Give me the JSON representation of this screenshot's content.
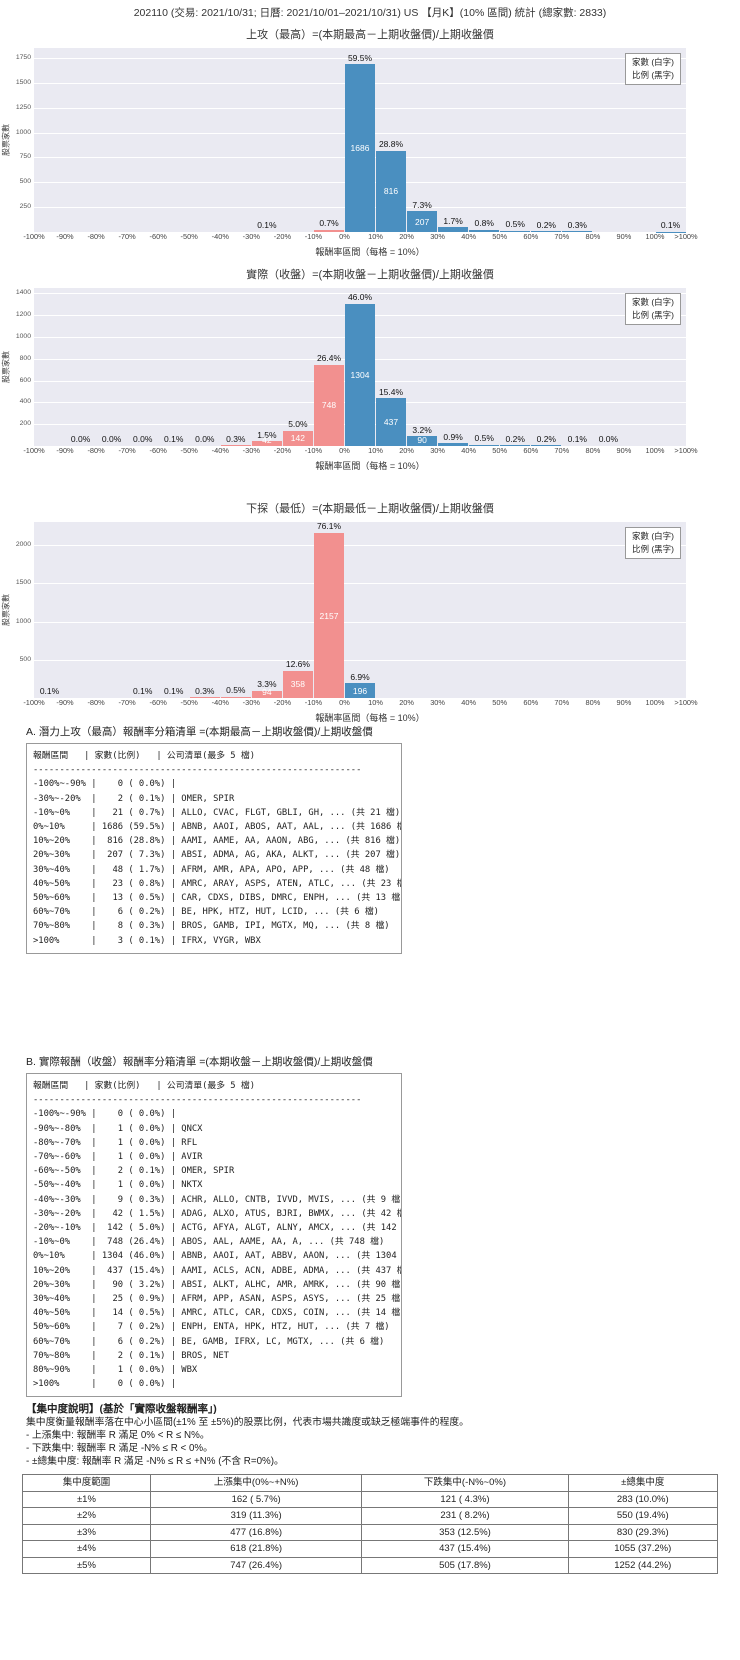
{
  "page_title": "202110 (交易: 2021/10/31; 日曆: 2021/10/01–2021/10/31) US 【月K】(10% 區間) 統計 (總家數: 2833)",
  "colors": {
    "bar_pos": "#4a8fc0",
    "bar_neg": "#f2908f",
    "plot_bg": "#eaeaf2",
    "grid": "#ffffff"
  },
  "chart_data": [
    {
      "type": "bar",
      "title": "上攻（最高）=(本期最高－上期收盤價)/上期收盤價",
      "ylabel": "股票家數",
      "xlabel": "報酬率區間（每格 = 10%）",
      "legend": [
        "家數 (白字)",
        "比例 (黑字)"
      ],
      "total": 2833,
      "ymax": 1850,
      "yticks": [
        250,
        500,
        750,
        1000,
        1250,
        1500,
        1750
      ],
      "xticks": [
        "-100%",
        "-90%",
        "-80%",
        "-70%",
        "-60%",
        "-50%",
        "-40%",
        "-30%",
        "-20%",
        "-10%",
        "0%",
        "10%",
        "20%",
        "30%",
        "40%",
        "50%",
        "60%",
        "70%",
        "80%",
        "90%",
        "100%",
        ">100%"
      ],
      "bins": [
        {
          "range": "-100%~-90%",
          "count": 0,
          "pct": 0.0,
          "pct_label": "",
          "count_label": ""
        },
        {
          "range": "-90%~-80%",
          "count": 0,
          "pct": 0.0,
          "pct_label": "",
          "count_label": ""
        },
        {
          "range": "-80%~-70%",
          "count": 0,
          "pct": 0.0,
          "pct_label": "",
          "count_label": ""
        },
        {
          "range": "-70%~-60%",
          "count": 0,
          "pct": 0.0,
          "pct_label": "",
          "count_label": ""
        },
        {
          "range": "-60%~-50%",
          "count": 0,
          "pct": 0.0,
          "pct_label": "",
          "count_label": ""
        },
        {
          "range": "-50%~-40%",
          "count": 0,
          "pct": 0.0,
          "pct_label": "",
          "count_label": ""
        },
        {
          "range": "-40%~-30%",
          "count": 0,
          "pct": 0.0,
          "pct_label": "",
          "count_label": ""
        },
        {
          "range": "-30%~-20%",
          "count": 2,
          "pct": 0.1,
          "pct_label": "0.1%",
          "count_label": ""
        },
        {
          "range": "-20%~-10%",
          "count": 0,
          "pct": 0.0,
          "pct_label": "",
          "count_label": ""
        },
        {
          "range": "-10%~0%",
          "count": 21,
          "pct": 0.7,
          "pct_label": "0.7%",
          "count_label": ""
        },
        {
          "range": "0%~10%",
          "count": 1686,
          "pct": 59.5,
          "pct_label": "59.5%",
          "count_label": "1686"
        },
        {
          "range": "10%~20%",
          "count": 816,
          "pct": 28.8,
          "pct_label": "28.8%",
          "count_label": "816"
        },
        {
          "range": "20%~30%",
          "count": 207,
          "pct": 7.3,
          "pct_label": "7.3%",
          "count_label": "207"
        },
        {
          "range": "30%~40%",
          "count": 48,
          "pct": 1.7,
          "pct_label": "1.7%",
          "count_label": ""
        },
        {
          "range": "40%~50%",
          "count": 23,
          "pct": 0.8,
          "pct_label": "0.8%",
          "count_label": ""
        },
        {
          "range": "50%~60%",
          "count": 13,
          "pct": 0.5,
          "pct_label": "0.5%",
          "count_label": ""
        },
        {
          "range": "60%~70%",
          "count": 6,
          "pct": 0.2,
          "pct_label": "0.2%",
          "count_label": ""
        },
        {
          "range": "70%~80%",
          "count": 8,
          "pct": 0.3,
          "pct_label": "0.3%",
          "count_label": ""
        },
        {
          "range": "80%~90%",
          "count": 0,
          "pct": 0.0,
          "pct_label": "",
          "count_label": ""
        },
        {
          "range": "90%~100%",
          "count": 0,
          "pct": 0.0,
          "pct_label": "",
          "count_label": ""
        },
        {
          "range": ">100%",
          "count": 3,
          "pct": 0.1,
          "pct_label": "0.1%",
          "count_label": ""
        }
      ]
    },
    {
      "type": "bar",
      "title": "實際（收盤）=(本期收盤－上期收盤價)/上期收盤價",
      "ylabel": "股票家數",
      "xlabel": "報酬率區間（每格 = 10%）",
      "legend": [
        "家數 (白字)",
        "比例 (黑字)"
      ],
      "total": 2833,
      "ymax": 1450,
      "yticks": [
        200,
        400,
        600,
        800,
        1000,
        1200,
        1400
      ],
      "xticks": [
        "-100%",
        "-90%",
        "-80%",
        "-70%",
        "-60%",
        "-50%",
        "-40%",
        "-30%",
        "-20%",
        "-10%",
        "0%",
        "10%",
        "20%",
        "30%",
        "40%",
        "50%",
        "60%",
        "70%",
        "80%",
        "90%",
        "100%",
        ">100%"
      ],
      "bins": [
        {
          "range": "-100%~-90%",
          "count": 0,
          "pct": 0.0,
          "pct_label": "",
          "count_label": ""
        },
        {
          "range": "-90%~-80%",
          "count": 1,
          "pct": 0.0,
          "pct_label": "0.0%",
          "count_label": ""
        },
        {
          "range": "-80%~-70%",
          "count": 1,
          "pct": 0.0,
          "pct_label": "0.0%",
          "count_label": ""
        },
        {
          "range": "-70%~-60%",
          "count": 1,
          "pct": 0.0,
          "pct_label": "0.0%",
          "count_label": ""
        },
        {
          "range": "-60%~-50%",
          "count": 2,
          "pct": 0.1,
          "pct_label": "0.1%",
          "count_label": ""
        },
        {
          "range": "-50%~-40%",
          "count": 1,
          "pct": 0.0,
          "pct_label": "0.0%",
          "count_label": ""
        },
        {
          "range": "-40%~-30%",
          "count": 9,
          "pct": 0.3,
          "pct_label": "0.3%",
          "count_label": ""
        },
        {
          "range": "-30%~-20%",
          "count": 42,
          "pct": 1.5,
          "pct_label": "1.5%",
          "count_label": "42"
        },
        {
          "range": "-20%~-10%",
          "count": 142,
          "pct": 5.0,
          "pct_label": "5.0%",
          "count_label": "142"
        },
        {
          "range": "-10%~0%",
          "count": 748,
          "pct": 26.4,
          "pct_label": "26.4%",
          "count_label": "748"
        },
        {
          "range": "0%~10%",
          "count": 1304,
          "pct": 46.0,
          "pct_label": "46.0%",
          "count_label": "1304"
        },
        {
          "range": "10%~20%",
          "count": 437,
          "pct": 15.4,
          "pct_label": "15.4%",
          "count_label": "437"
        },
        {
          "range": "20%~30%",
          "count": 90,
          "pct": 3.2,
          "pct_label": "3.2%",
          "count_label": "90"
        },
        {
          "range": "30%~40%",
          "count": 25,
          "pct": 0.9,
          "pct_label": "0.9%",
          "count_label": ""
        },
        {
          "range": "40%~50%",
          "count": 14,
          "pct": 0.5,
          "pct_label": "0.5%",
          "count_label": ""
        },
        {
          "range": "50%~60%",
          "count": 7,
          "pct": 0.2,
          "pct_label": "0.2%",
          "count_label": ""
        },
        {
          "range": "60%~70%",
          "count": 6,
          "pct": 0.2,
          "pct_label": "0.2%",
          "count_label": ""
        },
        {
          "range": "70%~80%",
          "count": 2,
          "pct": 0.1,
          "pct_label": "0.1%",
          "count_label": ""
        },
        {
          "range": "80%~90%",
          "count": 1,
          "pct": 0.0,
          "pct_label": "0.0%",
          "count_label": ""
        },
        {
          "range": "90%~100%",
          "count": 0,
          "pct": 0.0,
          "pct_label": "",
          "count_label": ""
        },
        {
          "range": ">100%",
          "count": 0,
          "pct": 0.0,
          "pct_label": "",
          "count_label": ""
        }
      ]
    },
    {
      "type": "bar",
      "title": "下探（最低）=(本期最低－上期收盤價)/上期收盤價",
      "ylabel": "股票家數",
      "xlabel": "報酬率區間（每格 = 10%）",
      "legend": [
        "家數 (白字)",
        "比例 (黑字)"
      ],
      "total": 2833,
      "ymax": 2300,
      "yticks": [
        500,
        1000,
        1500,
        2000
      ],
      "xticks": [
        "-100%",
        "-90%",
        "-80%",
        "-70%",
        "-60%",
        "-50%",
        "-40%",
        "-30%",
        "-20%",
        "-10%",
        "0%",
        "10%",
        "20%",
        "30%",
        "40%",
        "50%",
        "60%",
        "70%",
        "80%",
        "90%",
        "100%",
        ">100%"
      ],
      "bins": [
        {
          "range": "-100%~-90%",
          "count": null,
          "pct": 0.1,
          "pct_label": "0.1%",
          "count_label": ""
        },
        {
          "range": "-90%~-80%",
          "count": null,
          "pct": 0.0,
          "pct_label": "",
          "count_label": ""
        },
        {
          "range": "-80%~-70%",
          "count": null,
          "pct": 0.0,
          "pct_label": "",
          "count_label": ""
        },
        {
          "range": "-70%~-60%",
          "count": null,
          "pct": 0.1,
          "pct_label": "0.1%",
          "count_label": ""
        },
        {
          "range": "-60%~-50%",
          "count": null,
          "pct": 0.1,
          "pct_label": "0.1%",
          "count_label": ""
        },
        {
          "range": "-50%~-40%",
          "count": null,
          "pct": 0.3,
          "pct_label": "0.3%",
          "count_label": ""
        },
        {
          "range": "-40%~-30%",
          "count": null,
          "pct": 0.5,
          "pct_label": "0.5%",
          "count_label": ""
        },
        {
          "range": "-30%~-20%",
          "count": 94,
          "pct": 3.3,
          "pct_label": "3.3%",
          "count_label": "94"
        },
        {
          "range": "-20%~-10%",
          "count": 358,
          "pct": 12.6,
          "pct_label": "12.6%",
          "count_label": "358"
        },
        {
          "range": "-10%~0%",
          "count": 2157,
          "pct": 76.1,
          "pct_label": "76.1%",
          "count_label": "2157"
        },
        {
          "range": "0%~10%",
          "count": 196,
          "pct": 6.9,
          "pct_label": "6.9%",
          "count_label": "196"
        },
        {
          "range": "10%~20%",
          "count": 0,
          "pct": 0.0,
          "pct_label": "",
          "count_label": ""
        },
        {
          "range": "20%~30%",
          "count": 0,
          "pct": 0.0,
          "pct_label": "",
          "count_label": ""
        },
        {
          "range": "30%~40%",
          "count": 0,
          "pct": 0.0,
          "pct_label": "",
          "count_label": ""
        },
        {
          "range": "40%~50%",
          "count": 0,
          "pct": 0.0,
          "pct_label": "",
          "count_label": ""
        },
        {
          "range": "50%~60%",
          "count": 0,
          "pct": 0.0,
          "pct_label": "",
          "count_label": ""
        },
        {
          "range": "60%~70%",
          "count": 0,
          "pct": 0.0,
          "pct_label": "",
          "count_label": ""
        },
        {
          "range": "70%~80%",
          "count": 0,
          "pct": 0.0,
          "pct_label": "",
          "count_label": ""
        },
        {
          "range": "80%~90%",
          "count": 0,
          "pct": 0.0,
          "pct_label": "",
          "count_label": ""
        },
        {
          "range": "90%~100%",
          "count": 0,
          "pct": 0.0,
          "pct_label": "",
          "count_label": ""
        },
        {
          "range": ">100%",
          "count": 0,
          "pct": 0.0,
          "pct_label": "",
          "count_label": ""
        }
      ]
    }
  ],
  "listing_a": {
    "heading": "A. 潛力上攻（最高）報酬率分箱清單 =(本期最高－上期收盤價)/上期收盤價",
    "col_header": "報酬區間   | 家數(比例)   | 公司清單(最多 5 檔)",
    "divider": "--------------------------------------------------------------",
    "rows": [
      "-100%~-90% |    0 ( 0.0%) |",
      "-30%~-20%  |    2 ( 0.1%) | OMER, SPIR",
      "-10%~0%    |   21 ( 0.7%) | ALLO, CVAC, FLGT, GBLI, GH, ... (共 21 檔)",
      "0%~10%     | 1686 (59.5%) | ABNB, AAOI, ABOS, AAT, AAL, ... (共 1686 檔)",
      "10%~20%    |  816 (28.8%) | AAMI, AAME, AA, AAON, ABG, ... (共 816 檔)",
      "20%~30%    |  207 ( 7.3%) | ABSI, ADMA, AG, AKA, ALKT, ... (共 207 檔)",
      "30%~40%    |   48 ( 1.7%) | AFRM, AMR, APA, APO, APP, ... (共 48 檔)",
      "40%~50%    |   23 ( 0.8%) | AMRC, ARAY, ASPS, ATEN, ATLC, ... (共 23 檔)",
      "50%~60%    |   13 ( 0.5%) | CAR, CDXS, DIBS, DMRC, ENPH, ... (共 13 檔)",
      "60%~70%    |    6 ( 0.2%) | BE, HPK, HTZ, HUT, LCID, ... (共 6 檔)",
      "70%~80%    |    8 ( 0.3%) | BROS, GAMB, IPI, MGTX, MQ, ... (共 8 檔)",
      ">100%      |    3 ( 0.1%) | IFRX, VYGR, WBX"
    ]
  },
  "listing_b": {
    "heading": "B. 實際報酬（收盤）報酬率分箱清單 =(本期收盤－上期收盤價)/上期收盤價",
    "col_header": "報酬區間   | 家數(比例)   | 公司清單(最多 5 檔)",
    "divider": "--------------------------------------------------------------",
    "rows": [
      "-100%~-90% |    0 ( 0.0%) |",
      "-90%~-80%  |    1 ( 0.0%) | QNCX",
      "-80%~-70%  |    1 ( 0.0%) | RFL",
      "-70%~-60%  |    1 ( 0.0%) | AVIR",
      "-60%~-50%  |    2 ( 0.1%) | OMER, SPIR",
      "-50%~-40%  |    1 ( 0.0%) | NKTX",
      "-40%~-30%  |    9 ( 0.3%) | ACHR, ALLO, CNTB, IVVD, MVIS, ... (共 9 檔)",
      "-30%~-20%  |   42 ( 1.5%) | ADAG, ALXO, ATUS, BJRI, BWMX, ... (共 42 檔)",
      "-20%~-10%  |  142 ( 5.0%) | ACTG, AFYA, ALGT, ALNY, AMCX, ... (共 142 檔)",
      "-10%~0%    |  748 (26.4%) | ABOS, AAL, AAME, AA, A, ... (共 748 檔)",
      "0%~10%     | 1304 (46.0%) | ABNB, AAOI, AAT, ABBV, AAON, ... (共 1304 檔)",
      "10%~20%    |  437 (15.4%) | AAMI, ACLS, ACN, ADBE, ADMA, ... (共 437 檔)",
      "20%~30%    |   90 ( 3.2%) | ABSI, ALKT, ALHC, AMR, AMRK, ... (共 90 檔)",
      "30%~40%    |   25 ( 0.9%) | AFRM, APP, ASAN, ASPS, ASYS, ... (共 25 檔)",
      "40%~50%    |   14 ( 0.5%) | AMRC, ATLC, CAR, CDXS, COIN, ... (共 14 檔)",
      "50%~60%    |    7 ( 0.2%) | ENPH, ENTA, HPK, HTZ, HUT, ... (共 7 檔)",
      "60%~70%    |    6 ( 0.2%) | BE, GAMB, IFRX, LC, MGTX, ... (共 6 檔)",
      "70%~80%    |    2 ( 0.1%) | BROS, NET",
      "80%~90%    |    1 ( 0.0%) | WBX",
      ">100%      |    0 ( 0.0%) |"
    ]
  },
  "concentration": {
    "note_title": "【集中度說明】(基於「實際收盤報酬率」)",
    "note_lines": [
      "集中度衡量報酬率落在中心小區間(±1% 至 ±5%)的股票比例，代表市場共識度或缺乏極端事件的程度。",
      "- 上漲集中: 報酬率 R 滿足 0% < R ≤ N%。",
      "- 下跌集中: 報酬率 R 滿足 -N% ≤ R < 0%。",
      "- ±總集中度: 報酬率 R 滿足 -N% ≤ R ≤ +N% (不含 R=0%)。"
    ],
    "table": {
      "headers": [
        "集中度範圍",
        "上漲集中(0%~+N%)",
        "下跌集中(-N%~0%)",
        "±總集中度"
      ],
      "rows": [
        [
          "±1%",
          "162 ( 5.7%)",
          "121 ( 4.3%)",
          "283 (10.0%)"
        ],
        [
          "±2%",
          "319 (11.3%)",
          "231 ( 8.2%)",
          "550 (19.4%)"
        ],
        [
          "±3%",
          "477 (16.8%)",
          "353 (12.5%)",
          "830 (29.3%)"
        ],
        [
          "±4%",
          "618 (21.8%)",
          "437 (15.4%)",
          "1055 (37.2%)"
        ],
        [
          "±5%",
          "747 (26.4%)",
          "505 (17.8%)",
          "1252 (44.2%)"
        ]
      ]
    }
  }
}
